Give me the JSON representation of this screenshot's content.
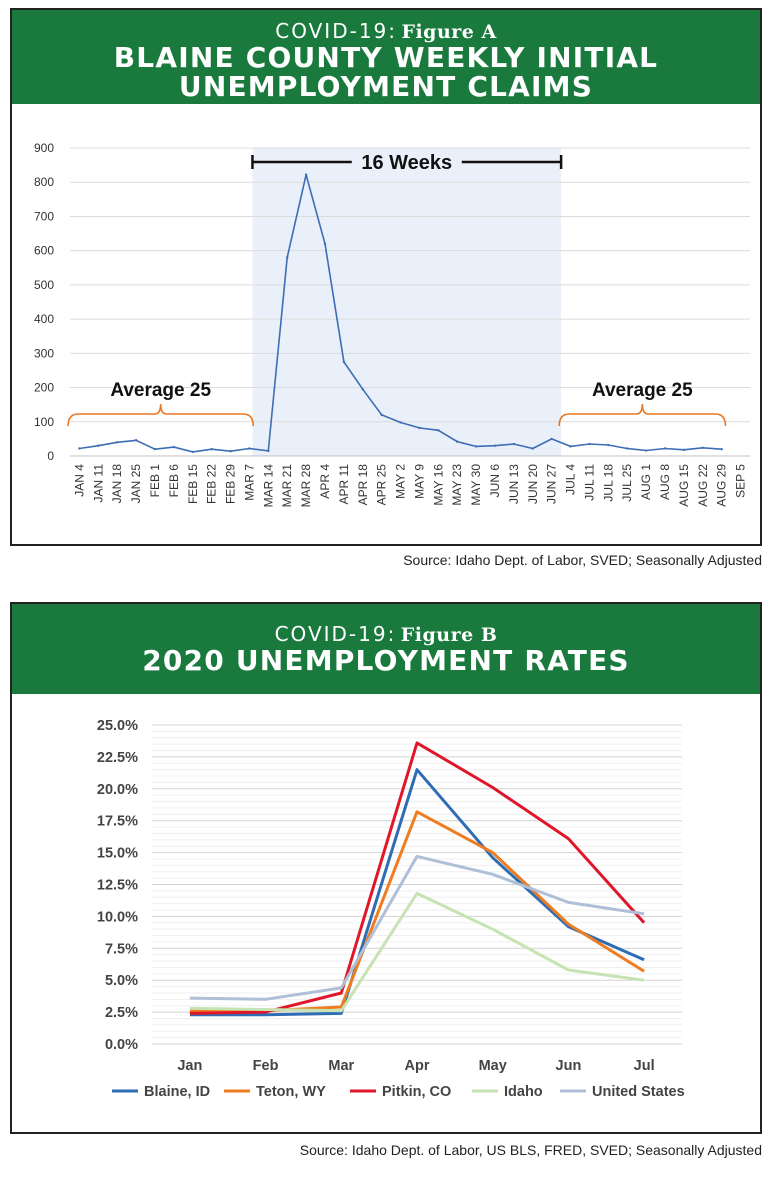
{
  "figure_a": {
    "prefix": "COVID-19:",
    "figure": "Figure A",
    "title_line1": "BLAINE COUNTY WEEKLY INITIAL",
    "title_line2": "UNEMPLOYMENT CLAIMS",
    "source": "Source: Idaho Dept. of Labor, SVED; Seasonally Adjusted"
  },
  "figure_b": {
    "prefix": "COVID-19:",
    "figure": "Figure B",
    "title_line1": "2020 UNEMPLOYMENT RATES",
    "source": "Source: Idaho Dept. of Labor, US BLS, FRED, SVED; Seasonally Adjusted"
  },
  "chart_data": [
    {
      "type": "line",
      "title": "BLAINE COUNTY WEEKLY INITIAL UNEMPLOYMENT CLAIMS",
      "xlabel": "",
      "ylabel": "",
      "ylim": [
        0,
        900
      ],
      "yticks": [
        0,
        100,
        200,
        300,
        400,
        500,
        600,
        700,
        800,
        900
      ],
      "grid": true,
      "color": "#3d6db5",
      "categories": [
        "JAN 4",
        "JAN 11",
        "JAN 18",
        "JAN 25",
        "FEB 1",
        "FEB 6",
        "FEB 15",
        "FEB 22",
        "FEB 29",
        "MAR 7",
        "MAR 14",
        "MAR 21",
        "MAR 28",
        "APR 4",
        "APR 11",
        "APR 18",
        "APR 25",
        "MAY 2",
        "MAY 9",
        "MAY 16",
        "MAY 23",
        "MAY 30",
        "JUN 6",
        "JUN 13",
        "JUN 20",
        "JUN 27",
        "JUL 4",
        "JUL 11",
        "JUL 18",
        "JUL 25",
        "AUG 1",
        "AUG 8",
        "AUG 15",
        "AUG 22",
        "AUG 29",
        "SEP 5"
      ],
      "values": [
        22,
        30,
        40,
        46,
        20,
        26,
        12,
        20,
        14,
        22,
        15,
        580,
        822,
        620,
        275,
        195,
        120,
        98,
        82,
        75,
        42,
        28,
        30,
        35,
        22,
        50,
        28,
        35,
        32,
        22,
        16,
        22,
        18,
        24,
        20,
        null
      ],
      "annotations": [
        {
          "text": "16 Weeks",
          "span": [
            "MAR 7",
            "JUN 27"
          ],
          "shaded": true
        },
        {
          "text": "Average 25",
          "span": [
            "JAN 4",
            "MAR 7"
          ],
          "color": "#e87722"
        },
        {
          "text": "Average 25",
          "span": [
            "JUL 4",
            "AUG 29"
          ],
          "color": "#e87722"
        }
      ]
    },
    {
      "type": "line",
      "title": "2020 UNEMPLOYMENT RATES",
      "xlabel": "",
      "ylabel": "",
      "ylim": [
        0,
        25
      ],
      "yticks": [
        "0.0%",
        "2.5%",
        "5.0%",
        "7.5%",
        "10.0%",
        "12.5%",
        "15.0%",
        "17.5%",
        "20.0%",
        "22.5%",
        "25.0%"
      ],
      "grid": true,
      "legend": "bottom",
      "categories": [
        "Jan",
        "Feb",
        "Mar",
        "Apr",
        "May",
        "Jun",
        "Jul"
      ],
      "series": [
        {
          "name": "Blaine, ID",
          "color": "#2e6db5",
          "values": [
            2.3,
            2.3,
            2.4,
            21.5,
            14.6,
            9.2,
            6.6
          ]
        },
        {
          "name": "Teton, WY",
          "color": "#ee7d22",
          "values": [
            2.6,
            2.6,
            2.9,
            18.2,
            15.0,
            9.4,
            5.7
          ]
        },
        {
          "name": "Pitkin, CO",
          "color": "#e0172a",
          "values": [
            2.4,
            2.5,
            4.0,
            23.6,
            20.1,
            16.1,
            9.5
          ]
        },
        {
          "name": "Idaho",
          "color": "#c6e3b3",
          "values": [
            2.8,
            2.7,
            2.6,
            11.8,
            9.0,
            5.8,
            5.0
          ]
        },
        {
          "name": "United States",
          "color": "#afbfd8",
          "values": [
            3.6,
            3.5,
            4.4,
            14.7,
            13.3,
            11.1,
            10.2
          ]
        }
      ]
    }
  ]
}
